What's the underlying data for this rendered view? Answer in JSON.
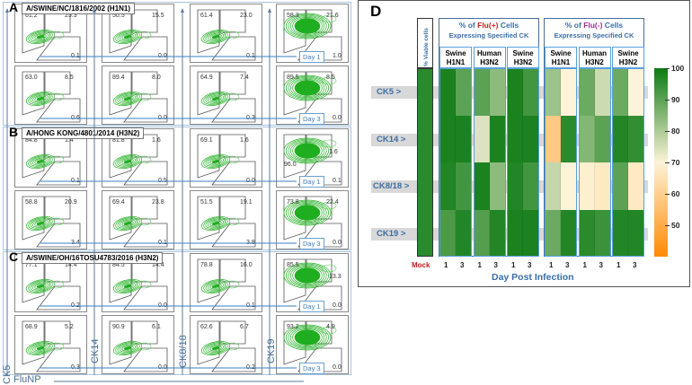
{
  "panels": [
    {
      "letter": "A",
      "title": "A/SWINE/NC/1816/2002 (H1N1)",
      "rows": [
        {
          "day": "Day 1",
          "plots": [
            [
              "61.2",
              "25.3",
              "0.1"
            ],
            [
              "50.5",
              "15.5",
              "0.0"
            ],
            [
              "61.4",
              "23.0",
              "0.1"
            ],
            [
              "58.3",
              "21.6",
              "1.0"
            ]
          ]
        },
        {
          "day": "Day 3",
          "plots": [
            [
              "63.0",
              "8.5",
              "0.6"
            ],
            [
              "89.4",
              "8.0",
              "0.0"
            ],
            [
              "64.9",
              "7.4",
              "0.3"
            ],
            [
              "89.5",
              "8.5",
              "0.0"
            ]
          ]
        }
      ]
    },
    {
      "letter": "B",
      "title": "A/HONG KONG/4801/2014 (H3N2)",
      "rows": [
        {
          "day": "Day 1",
          "plots": [
            [
              "84.8",
              "1.4",
              "0.1"
            ],
            [
              "81.8",
              "1.6",
              "0.5"
            ],
            [
              "69.1",
              "1.6",
              "0.0"
            ],
            [
              "96.0",
              "1.6",
              "0.1"
            ]
          ]
        },
        {
          "day": "Day 3",
          "plots": [
            [
              "58.8",
              "20.9",
              "3.4"
            ],
            [
              "69.4",
              "23.8",
              "0.1"
            ],
            [
              "51.5",
              "19.1",
              "3.8"
            ],
            [
              "73.8",
              "22.4",
              "0.0"
            ]
          ]
        }
      ]
    },
    {
      "letter": "C",
      "title": "A/SWINE/OH/16TOSU4783/2016 (H3N2)",
      "rows": [
        {
          "day": "Day 1",
          "plots": [
            [
              "77.1",
              "14.4",
              "0.2"
            ],
            [
              "84.5",
              "14.4",
              "0.0"
            ],
            [
              "78.8",
              "16.0",
              "0.1"
            ],
            [
              "85.5",
              "13.3",
              "0.0"
            ]
          ]
        },
        {
          "day": "Day 3",
          "plots": [
            [
              "68.9",
              "5.2",
              "0.3"
            ],
            [
              "90.9",
              "6.1",
              "0.0"
            ],
            [
              "62.6",
              "6.7",
              "0.2"
            ],
            [
              "93.2",
              "4.9",
              "0.0"
            ]
          ]
        }
      ]
    }
  ],
  "y_axes": [
    "CK5",
    "CK14",
    "CK8/18",
    "CK19"
  ],
  "x_axis": "FluNP",
  "chart_data": {
    "type": "heatmap",
    "panel_letter": "D",
    "viable_header": "% Viable cells",
    "groups": [
      {
        "title_pre": "% of ",
        "title_flu": "Flu(+)",
        "title_post": " Cells",
        "subtitle": "Expressing Specified CK",
        "flu_color": "#d42020"
      },
      {
        "title_pre": "% of ",
        "title_flu": "Flu(-)",
        "title_post": " Cells",
        "subtitle": "Expressing Specified CK",
        "flu_color": "#a0308a"
      }
    ],
    "strains": [
      [
        "Swine",
        "H1N1"
      ],
      [
        "Human",
        "H3N2"
      ],
      [
        "Swine",
        "H3N2"
      ]
    ],
    "rows": [
      "CK5 >",
      "CK14 >",
      "CK8/18 >",
      "CK19 >"
    ],
    "days": [
      "1",
      "3"
    ],
    "mock_label": "Mock",
    "xlabel": "Day Post Infection",
    "mock_values": [
      96,
      96,
      96,
      96
    ],
    "flu_pos": [
      [
        98,
        90,
        90,
        84,
        98,
        93
      ],
      [
        98,
        98,
        74,
        98,
        98,
        98
      ],
      [
        97,
        93,
        98,
        84,
        97,
        93
      ],
      [
        92,
        97,
        91,
        97,
        98,
        98
      ]
    ],
    "flu_neg": [
      [
        82,
        70,
        88,
        76,
        88,
        70
      ],
      [
        58,
        96,
        85,
        90,
        97,
        95
      ],
      [
        77,
        70,
        69,
        67,
        90,
        67
      ],
      [
        88,
        97,
        96,
        94,
        97,
        97
      ]
    ],
    "colorbar": {
      "min": 40,
      "max": 100,
      "ticks": [
        "100",
        "90",
        "80",
        "70",
        "60",
        "50"
      ]
    },
    "colors": {
      "high": "#0b7a12",
      "mid": "#fdf3d8",
      "low": "#ff8a00"
    }
  }
}
